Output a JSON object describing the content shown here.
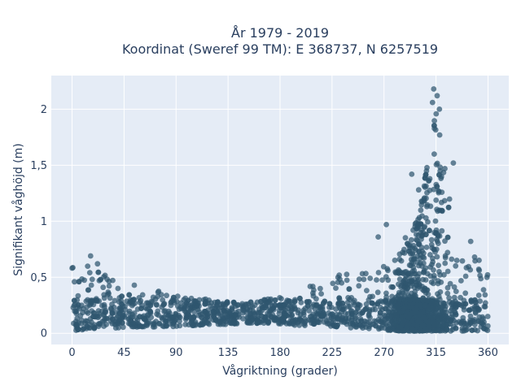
{
  "chart_data": {
    "type": "scatter",
    "title_line1": "År 1979 - 2019",
    "title_line2": "Koordinat (Sweref 99 TM): E 368737, N 6257519",
    "xlabel": "Vågriktning (grader)",
    "ylabel": "Signifikant våghöjd (m)",
    "xlim": [
      -18,
      378
    ],
    "ylim": [
      -0.1,
      2.3
    ],
    "xticks": [
      0,
      45,
      90,
      135,
      180,
      225,
      270,
      315,
      360
    ],
    "xtick_labels": [
      "0",
      "45",
      "90",
      "135",
      "180",
      "225",
      "270",
      "315",
      "360"
    ],
    "yticks": [
      0,
      0.5,
      1,
      1.5,
      2
    ],
    "ytick_labels": [
      "0",
      "0,5",
      "1",
      "1,5",
      "2"
    ],
    "grid": true,
    "colors": {
      "marker": "#2f566f",
      "plot_bg": "#e5ecf6",
      "grid": "#ffffff",
      "text": "#2a3f5f"
    },
    "envelope": {
      "direction_deg": [
        0,
        10,
        20,
        30,
        45,
        60,
        75,
        90,
        105,
        120,
        135,
        150,
        165,
        180,
        195,
        210,
        225,
        240,
        255,
        270,
        285,
        295,
        300,
        305,
        310,
        315,
        318,
        322,
        326,
        330,
        335,
        340,
        345,
        350,
        355,
        360
      ],
      "max_height_m": [
        0.6,
        0.6,
        0.62,
        0.55,
        0.45,
        0.42,
        0.4,
        0.38,
        0.33,
        0.3,
        0.28,
        0.28,
        0.3,
        0.32,
        0.38,
        0.45,
        0.5,
        0.55,
        0.6,
        0.7,
        0.8,
        0.95,
        1.1,
        1.35,
        1.75,
        2.1,
        1.95,
        1.6,
        1.3,
        1.05,
        0.85,
        0.75,
        0.7,
        0.68,
        0.65,
        0.6
      ],
      "min_height_m": [
        0.02,
        0.03,
        0.04,
        0.04,
        0.05,
        0.05,
        0.06,
        0.06,
        0.07,
        0.08,
        0.08,
        0.09,
        0.09,
        0.08,
        0.07,
        0.07,
        0.06,
        0.05,
        0.04,
        0.03,
        0.02,
        0.02,
        0.02,
        0.02,
        0.02,
        0.02,
        0.02,
        0.02,
        0.02,
        0.02,
        0.02,
        0.02,
        0.02,
        0.02,
        0.02,
        0.02
      ]
    },
    "outliers": [
      {
        "x": 16,
        "y": 0.69
      },
      {
        "x": 22,
        "y": 0.62
      },
      {
        "x": 313,
        "y": 2.18
      },
      {
        "x": 316,
        "y": 2.12
      },
      {
        "x": 312,
        "y": 2.06
      },
      {
        "x": 318,
        "y": 2.0
      },
      {
        "x": 294,
        "y": 1.42
      },
      {
        "x": 300,
        "y": 1.28
      },
      {
        "x": 330,
        "y": 1.52
      },
      {
        "x": 272,
        "y": 0.97
      },
      {
        "x": 265,
        "y": 0.86
      },
      {
        "x": 345,
        "y": 0.82
      }
    ]
  }
}
